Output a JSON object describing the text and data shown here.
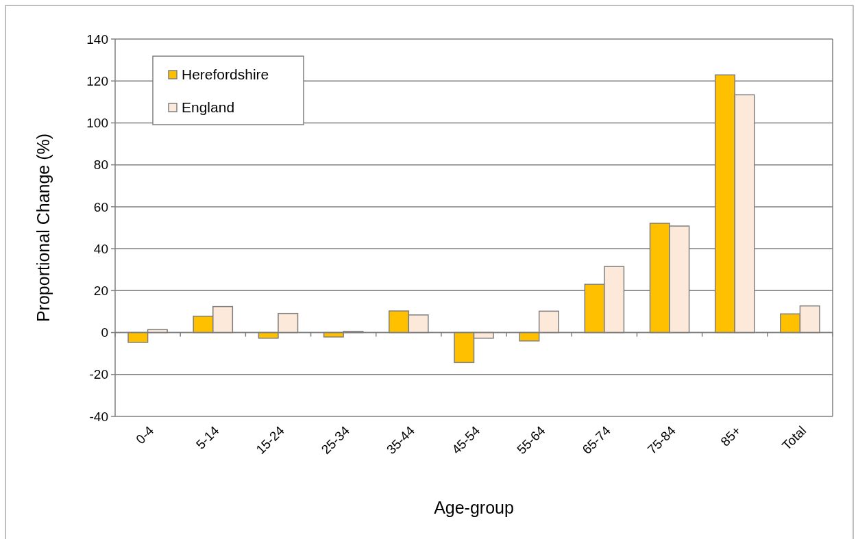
{
  "chart_data": {
    "type": "bar",
    "xlabel": "Age-group",
    "ylabel": "Proportional Change (%)",
    "categories": [
      "0-4",
      "5-14",
      "15-24",
      "25-34",
      "35-44",
      "45-54",
      "55-64",
      "65-74",
      "75-84",
      "85+",
      "Total"
    ],
    "series": [
      {
        "name": "Herefordshire",
        "color": "#ffc000",
        "values": [
          -4.7,
          7.8,
          -2.7,
          -2.1,
          10.3,
          -14.3,
          -4,
          23,
          52.1,
          122.9,
          8.9
        ]
      },
      {
        "name": "England",
        "color": "#fde9d9",
        "values": [
          1.4,
          12.4,
          9.1,
          0.6,
          8.4,
          -2.7,
          10.2,
          31.5,
          50.8,
          113.4,
          12.7
        ]
      }
    ],
    "ylim": [
      -40,
      140
    ],
    "yticks": [
      -40,
      -20,
      0,
      20,
      40,
      60,
      80,
      100,
      120,
      140
    ],
    "grid": "y",
    "legend": "top left"
  }
}
